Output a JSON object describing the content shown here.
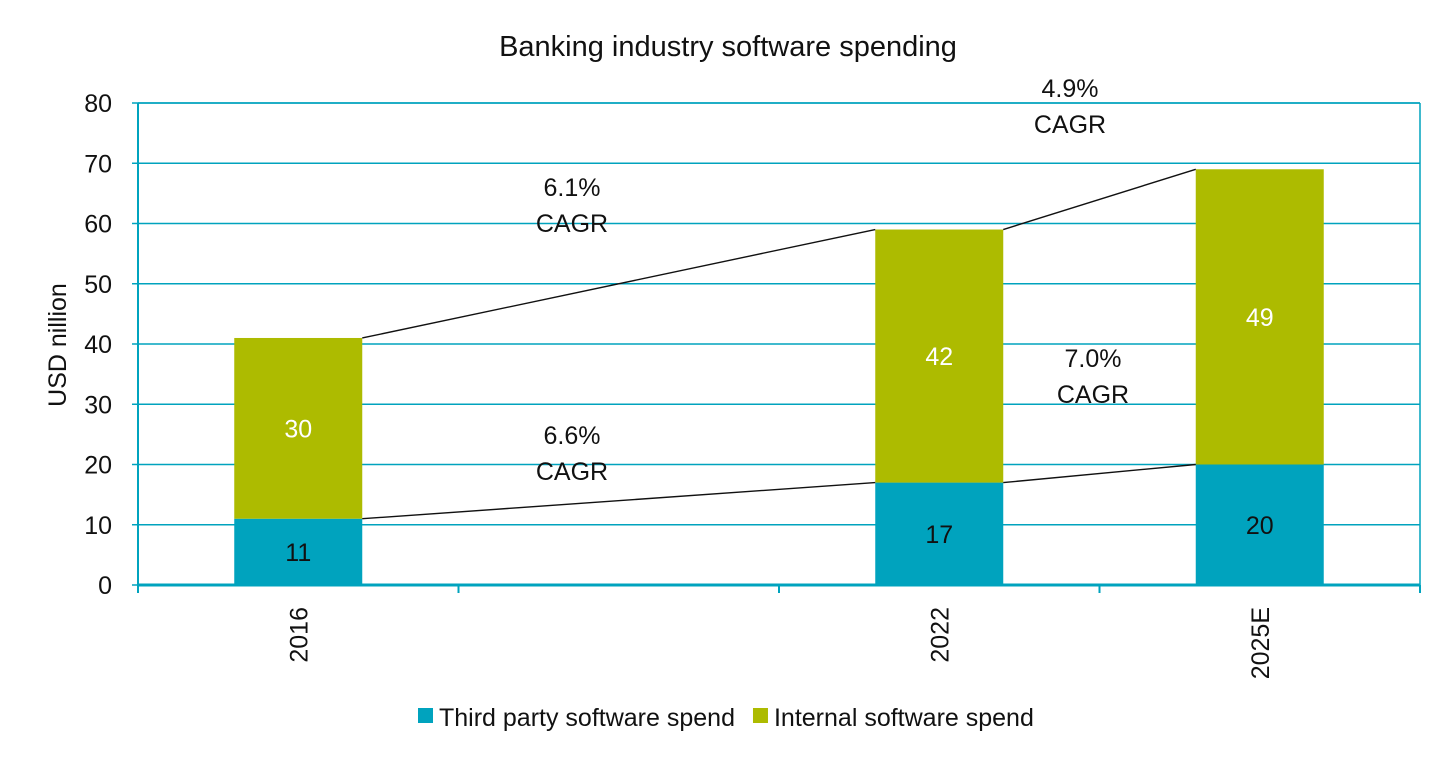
{
  "chart_data": {
    "type": "bar",
    "stacked": true,
    "title": "Banking industry software spending",
    "xlabel": "",
    "ylabel": "USD nillion",
    "ylim": [
      0,
      80
    ],
    "yticks": [
      0,
      10,
      20,
      30,
      40,
      50,
      60,
      70,
      80
    ],
    "grid": true,
    "legend_position": "bottom",
    "x_slots": [
      "2016",
      "",
      "2022",
      "2025E"
    ],
    "categories": [
      "2016",
      "2022",
      "2025E"
    ],
    "category_slots": [
      0,
      2,
      3
    ],
    "series": [
      {
        "name": "Third party software spend",
        "color": "#00a3be",
        "label_color": "#111111",
        "values": [
          11,
          17,
          20
        ]
      },
      {
        "name": "Internal software spend",
        "color": "#adbb00",
        "label_color": "#ffffff",
        "values": [
          30,
          42,
          49
        ]
      }
    ],
    "annotations": [
      {
        "text": [
          "6.1%",
          "CAGR"
        ],
        "between": [
          "2016",
          "2022"
        ],
        "level": "total"
      },
      {
        "text": [
          "4.9%",
          "CAGR"
        ],
        "between": [
          "2022",
          "2025E"
        ],
        "level": "total"
      },
      {
        "text": [
          "6.6%",
          "CAGR"
        ],
        "between": [
          "2016",
          "2022"
        ],
        "level": "Third party software spend"
      },
      {
        "text": [
          "7.0%",
          "CAGR"
        ],
        "between": [
          "2022",
          "2025E"
        ],
        "level": "Third party software spend"
      }
    ],
    "colors": {
      "grid": "#00a3be",
      "axis": "#00a3be",
      "trend_line": "#111111"
    }
  }
}
